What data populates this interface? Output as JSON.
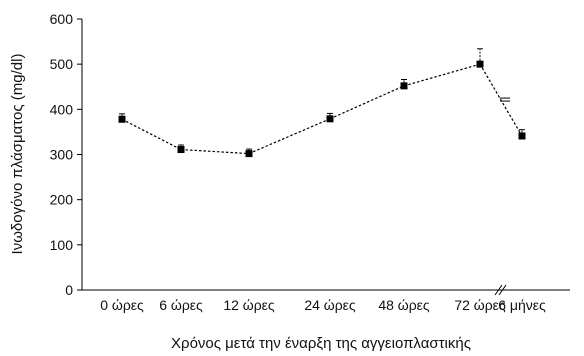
{
  "chart_data": {
    "type": "line",
    "title": "",
    "xlabel": "Χρόνος μετά την έναρξη της αγγειοπλαστικής",
    "ylabel": "Ινωδογόνο πλάσματος (mg/dl)",
    "categories": [
      "0 ώρες",
      "6 ώρες",
      "12 ώρες",
      "24 ώρες",
      "48 ώρες",
      "72 ώρες",
      "6 μήνες"
    ],
    "series": [
      {
        "values": [
          378,
          311,
          302,
          379,
          452,
          500,
          341
        ],
        "errors": [
          12,
          10,
          10,
          12,
          14,
          34,
          14
        ]
      }
    ],
    "yticks": [
      0,
      100,
      200,
      300,
      400,
      500,
      600
    ],
    "ylim": [
      0,
      600
    ],
    "axis_break_between": [
      "72 ώρες",
      "6 μήνες"
    ],
    "grid": false,
    "legend": "none",
    "line_style": "dotted",
    "marker": "square",
    "color": "#000000"
  }
}
